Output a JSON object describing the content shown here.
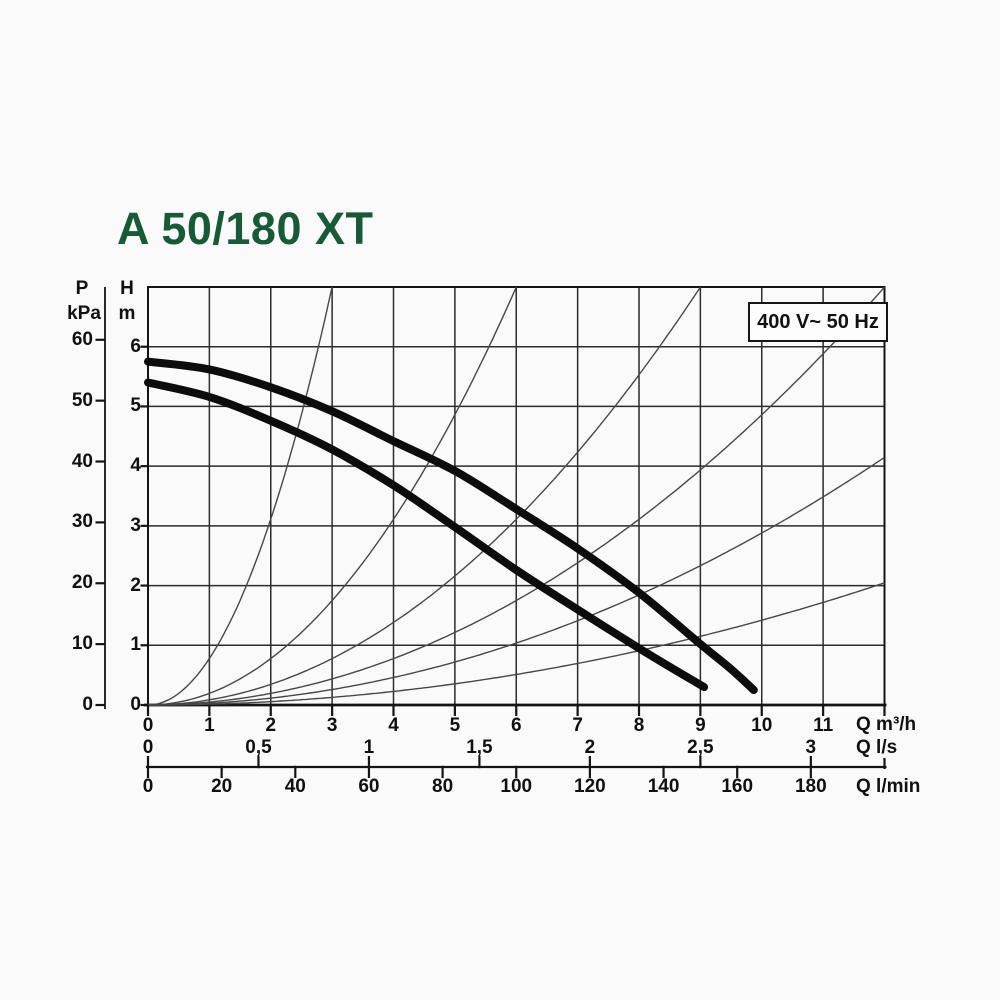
{
  "title": "A 50/180 XT",
  "voltage_label": "400 V~ 50 Hz",
  "colors": {
    "title": "#165a36",
    "pump_curve": "#0c0c0c",
    "system_curve": "#474747",
    "grid": "#2b2b2b",
    "axis": "#141414",
    "label": "#101010",
    "background": "#fafafa"
  },
  "chart_data": {
    "type": "line",
    "title": "A 50/180 XT",
    "annotation": "400 V~ 50 Hz",
    "grid": true,
    "axes": {
      "y_pressure": {
        "symbol": "P",
        "unit": "kPa",
        "ticks": [
          0,
          10,
          20,
          30,
          40,
          50,
          60
        ],
        "kpa_per_m": 9.81
      },
      "y_head": {
        "symbol": "H",
        "unit": "m",
        "ticks": [
          0,
          1,
          2,
          3,
          4,
          5,
          6
        ],
        "range": [
          0,
          7
        ]
      },
      "x_m3h": {
        "label": "Q m³/h",
        "ticks": [
          0,
          1,
          2,
          3,
          4,
          5,
          6,
          7,
          8,
          9,
          10,
          11
        ],
        "range": [
          0,
          12
        ]
      },
      "x_ls": {
        "label": "Q l/s",
        "tick_labels": [
          "0",
          "0,5",
          "1",
          "1,5",
          "2",
          "2,5",
          "3"
        ],
        "tick_values": [
          0,
          0.5,
          1,
          1.5,
          2,
          2.5,
          3
        ],
        "m3h_per_unit": 3.6
      },
      "x_lmin": {
        "label": "Q l/min",
        "ticks": [
          0,
          20,
          40,
          60,
          80,
          100,
          120,
          140,
          160,
          180
        ],
        "m3h_per_unit": 0.06
      }
    },
    "pump_curves": [
      {
        "name": "speed-high",
        "points": [
          [
            0,
            5.75
          ],
          [
            1,
            5.62
          ],
          [
            2,
            5.32
          ],
          [
            3,
            4.92
          ],
          [
            4,
            4.42
          ],
          [
            5,
            3.92
          ],
          [
            6,
            3.28
          ],
          [
            7,
            2.62
          ],
          [
            8,
            1.88
          ],
          [
            9,
            1.02
          ],
          [
            9.5,
            0.6
          ],
          [
            9.87,
            0.25
          ]
        ]
      },
      {
        "name": "speed-low",
        "points": [
          [
            0,
            5.4
          ],
          [
            1,
            5.16
          ],
          [
            2,
            4.76
          ],
          [
            3,
            4.28
          ],
          [
            4,
            3.68
          ],
          [
            5,
            2.98
          ],
          [
            6,
            2.26
          ],
          [
            7,
            1.6
          ],
          [
            8,
            0.95
          ],
          [
            8.6,
            0.58
          ],
          [
            9.06,
            0.3
          ]
        ]
      }
    ],
    "system_curves": [
      {
        "k": 0.778,
        "q_end": 3
      },
      {
        "k": 0.1944,
        "q_end": 6
      },
      {
        "k": 0.0864,
        "q_end": 9
      },
      {
        "k": 0.0486,
        "q_end": 12
      },
      {
        "k": 0.0288,
        "q_end": 12
      },
      {
        "k": 0.0142,
        "q_end": 12
      }
    ]
  }
}
